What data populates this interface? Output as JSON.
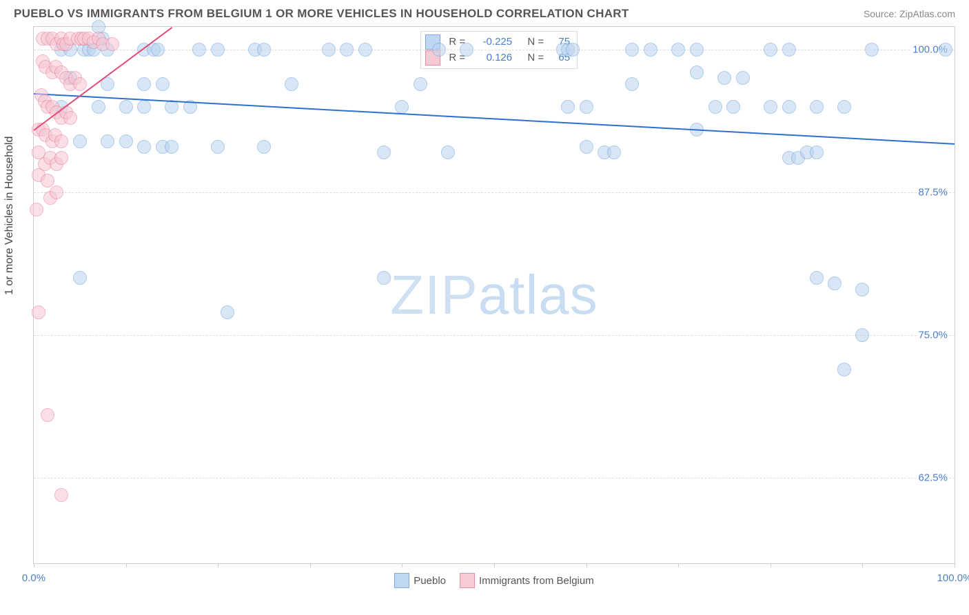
{
  "title": "PUEBLO VS IMMIGRANTS FROM BELGIUM 1 OR MORE VEHICLES IN HOUSEHOLD CORRELATION CHART",
  "source": "Source: ZipAtlas.com",
  "ylabel": "1 or more Vehicles in Household",
  "watermark_a": "ZIP",
  "watermark_b": "atlas",
  "chart": {
    "type": "scatter",
    "xlim": [
      0,
      100
    ],
    "ylim": [
      55,
      102
    ],
    "yticks": [
      62.5,
      75.0,
      87.5,
      100.0
    ],
    "ytick_labels": [
      "62.5%",
      "75.0%",
      "87.5%",
      "100.0%"
    ],
    "xticks": [
      0,
      10,
      20,
      30,
      40,
      50,
      60,
      70,
      80,
      90,
      100
    ],
    "xtick_labels_shown": {
      "0": "0.0%",
      "100": "100.0%"
    },
    "background_color": "#ffffff",
    "grid_color": "#dddddd",
    "border_color": "#cccccc",
    "marker_radius": 10,
    "marker_border_width": 1.5,
    "series": [
      {
        "key": "pueblo",
        "label": "Pueblo",
        "fill": "#b9d3ef",
        "stroke": "#6fa3dd",
        "fill_opacity": 0.55,
        "reg": {
          "x1": 0,
          "y1": 96.2,
          "x2": 100,
          "y2": 91.8,
          "color": "#2f6fd0",
          "width": 2
        },
        "stats": {
          "R": "-0.225",
          "N": "75"
        },
        "points": [
          [
            3,
            100
          ],
          [
            4,
            100
          ],
          [
            5.5,
            100
          ],
          [
            6,
            100
          ],
          [
            6.5,
            100
          ],
          [
            7,
            102
          ],
          [
            7.5,
            101
          ],
          [
            8,
            100
          ],
          [
            12,
            100
          ],
          [
            13,
            100
          ],
          [
            13.5,
            100
          ],
          [
            18,
            100
          ],
          [
            20,
            100
          ],
          [
            24,
            100
          ],
          [
            25,
            100
          ],
          [
            32,
            100
          ],
          [
            34,
            100
          ],
          [
            36,
            100
          ],
          [
            44,
            100
          ],
          [
            47,
            100
          ],
          [
            57.5,
            100
          ],
          [
            58,
            100
          ],
          [
            58.5,
            100
          ],
          [
            65,
            100
          ],
          [
            67,
            100
          ],
          [
            70,
            100
          ],
          [
            72,
            100
          ],
          [
            80,
            100
          ],
          [
            82,
            100
          ],
          [
            91,
            100
          ],
          [
            99,
            100
          ],
          [
            4,
            97.5
          ],
          [
            8,
            97
          ],
          [
            12,
            97
          ],
          [
            14,
            97
          ],
          [
            28,
            97
          ],
          [
            42,
            97
          ],
          [
            65,
            97
          ],
          [
            72,
            98
          ],
          [
            75,
            97.5
          ],
          [
            77,
            97.5
          ],
          [
            3,
            95
          ],
          [
            7,
            95
          ],
          [
            10,
            95
          ],
          [
            12,
            95
          ],
          [
            15,
            95
          ],
          [
            17,
            95
          ],
          [
            40,
            95
          ],
          [
            58,
            95
          ],
          [
            60,
            95
          ],
          [
            74,
            95
          ],
          [
            76,
            95
          ],
          [
            80,
            95
          ],
          [
            82,
            95
          ],
          [
            85,
            95
          ],
          [
            5,
            92
          ],
          [
            8,
            92
          ],
          [
            10,
            92
          ],
          [
            12,
            91.5
          ],
          [
            14,
            91.5
          ],
          [
            15,
            91.5
          ],
          [
            20,
            91.5
          ],
          [
            25,
            91.5
          ],
          [
            38,
            91
          ],
          [
            45,
            91
          ],
          [
            60,
            91.5
          ],
          [
            62,
            91
          ],
          [
            63,
            91
          ],
          [
            82,
            90.5
          ],
          [
            83,
            90.5
          ],
          [
            84,
            91
          ],
          [
            85,
            91
          ],
          [
            72,
            93
          ],
          [
            88,
            95
          ],
          [
            38,
            80
          ],
          [
            5,
            80
          ],
          [
            85,
            80
          ],
          [
            87,
            79.5
          ],
          [
            90,
            79
          ],
          [
            21,
            77
          ],
          [
            90,
            75
          ],
          [
            88,
            72
          ]
        ]
      },
      {
        "key": "belgium",
        "label": "Immigrants from Belgium",
        "fill": "#f6c6d2",
        "stroke": "#e77f9a",
        "fill_opacity": 0.55,
        "reg": {
          "x1": 0,
          "y1": 93.0,
          "x2": 15,
          "y2": 102.0,
          "color": "#e34b74",
          "width": 2
        },
        "stats": {
          "R": "0.126",
          "N": "65"
        },
        "points": [
          [
            1,
            101
          ],
          [
            1.5,
            101
          ],
          [
            2,
            101
          ],
          [
            2.5,
            100.5
          ],
          [
            3,
            101
          ],
          [
            3.2,
            100.5
          ],
          [
            3.5,
            100.5
          ],
          [
            4,
            101
          ],
          [
            4.8,
            101
          ],
          [
            5.2,
            101
          ],
          [
            5.5,
            101
          ],
          [
            6,
            101
          ],
          [
            6.5,
            100.7
          ],
          [
            7,
            101
          ],
          [
            7.5,
            100.5
          ],
          [
            8.5,
            100.5
          ],
          [
            1,
            99
          ],
          [
            1.3,
            98.5
          ],
          [
            2,
            98
          ],
          [
            2.4,
            98.5
          ],
          [
            3,
            98
          ],
          [
            3.5,
            97.5
          ],
          [
            4,
            97
          ],
          [
            4.5,
            97.5
          ],
          [
            5,
            97
          ],
          [
            0.8,
            96
          ],
          [
            1.2,
            95.5
          ],
          [
            1.5,
            95
          ],
          [
            2,
            95
          ],
          [
            2.5,
            94.5
          ],
          [
            3,
            94
          ],
          [
            3.5,
            94.5
          ],
          [
            4,
            94
          ],
          [
            0.5,
            93
          ],
          [
            1,
            93
          ],
          [
            1.3,
            92.5
          ],
          [
            2,
            92
          ],
          [
            2.3,
            92.5
          ],
          [
            3,
            92
          ],
          [
            0.5,
            91
          ],
          [
            1.2,
            90
          ],
          [
            1.8,
            90.5
          ],
          [
            2.5,
            90
          ],
          [
            3,
            90.5
          ],
          [
            0.5,
            89
          ],
          [
            1.5,
            88.5
          ],
          [
            1.8,
            87
          ],
          [
            2.5,
            87.5
          ],
          [
            0.3,
            86
          ],
          [
            0.5,
            77
          ],
          [
            1.5,
            68
          ],
          [
            3,
            61
          ]
        ]
      }
    ]
  },
  "legend": {
    "pueblo": "Pueblo",
    "belgium": "Immigrants from Belgium"
  }
}
